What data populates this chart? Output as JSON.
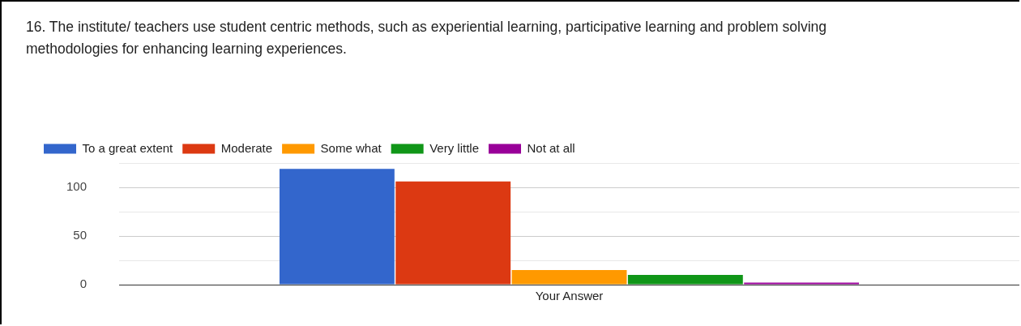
{
  "chart_data": {
    "type": "bar",
    "title": "16. The institute/ teachers use student centric methods, such as experiential learning, participative learning and problem solving methodologies for enhancing learning experiences.",
    "categories": [
      "Your Answer"
    ],
    "series": [
      {
        "name": "To a great extent",
        "color": "#3366cc",
        "values": [
          119
        ]
      },
      {
        "name": "Moderate",
        "color": "#dc3912",
        "values": [
          106
        ]
      },
      {
        "name": "Some what",
        "color": "#ff9900",
        "values": [
          15
        ]
      },
      {
        "name": "Very little",
        "color": "#109618",
        "values": [
          10
        ]
      },
      {
        "name": "Not at all",
        "color": "#990099",
        "values": [
          2
        ]
      }
    ],
    "ylim": [
      0,
      125
    ],
    "yticks": [
      0,
      {
        "value": 25,
        "label": null
      },
      50,
      {
        "value": 75,
        "label": null
      },
      100,
      {
        "value": 125,
        "label": null
      }
    ],
    "grid": "y",
    "legend": "top left"
  }
}
